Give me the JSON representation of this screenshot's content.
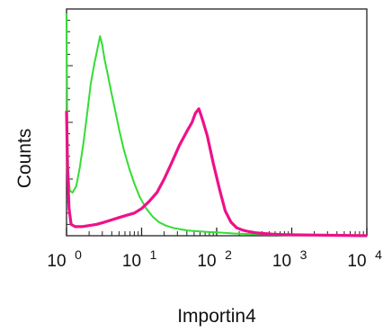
{
  "chart_data": {
    "type": "line",
    "title": "",
    "xlabel": "Importin4",
    "ylabel": "Counts",
    "x_scale": "log",
    "xlim": [
      1,
      10000
    ],
    "ylim": [
      0,
      1
    ],
    "grid": false,
    "legend": "none",
    "x_tick_labels": [
      {
        "value": 1,
        "base": "10",
        "exp": "0"
      },
      {
        "value": 10,
        "base": "10",
        "exp": "1"
      },
      {
        "value": 100,
        "base": "10",
        "exp": "2"
      },
      {
        "value": 1000,
        "base": "10",
        "exp": "3"
      },
      {
        "value": 10000,
        "base": "10",
        "exp": "4"
      }
    ],
    "series": [
      {
        "color": "#33dd33",
        "x": [
          1.0,
          1.02,
          1.05,
          1.1,
          1.2,
          1.35,
          1.5,
          1.7,
          1.9,
          2.1,
          2.35,
          2.6,
          2.8,
          3.0,
          3.2,
          3.5,
          3.9,
          4.4,
          5.0,
          5.8,
          6.8,
          8.0,
          9.5,
          11.5,
          14,
          17,
          21,
          26,
          33,
          42,
          55,
          75,
          110,
          170,
          300,
          600,
          1500,
          4000,
          10000
        ],
        "y": [
          0.98,
          0.55,
          0.3,
          0.2,
          0.19,
          0.22,
          0.3,
          0.42,
          0.55,
          0.67,
          0.76,
          0.83,
          0.88,
          0.84,
          0.78,
          0.72,
          0.64,
          0.56,
          0.47,
          0.38,
          0.3,
          0.23,
          0.17,
          0.12,
          0.085,
          0.06,
          0.045,
          0.035,
          0.028,
          0.023,
          0.02,
          0.017,
          0.014,
          0.01,
          0.007,
          0.004,
          0.002,
          0.001,
          0.0
        ]
      },
      {
        "color": "#ee1188",
        "x": [
          1.0,
          1.03,
          1.08,
          1.15,
          1.3,
          1.6,
          2.0,
          2.5,
          3.2,
          4.0,
          5.0,
          6.3,
          8.0,
          10,
          12.5,
          16,
          20,
          25,
          32,
          40,
          47,
          52,
          58,
          65,
          75,
          90,
          110,
          130,
          155,
          185,
          220,
          270,
          330,
          420,
          550,
          750,
          1100,
          1800,
          3500,
          10000
        ],
        "y": [
          0.55,
          0.3,
          0.12,
          0.05,
          0.04,
          0.04,
          0.045,
          0.05,
          0.06,
          0.07,
          0.08,
          0.09,
          0.1,
          0.12,
          0.15,
          0.19,
          0.25,
          0.32,
          0.4,
          0.46,
          0.5,
          0.54,
          0.56,
          0.51,
          0.44,
          0.32,
          0.2,
          0.11,
          0.06,
          0.035,
          0.025,
          0.018,
          0.013,
          0.01,
          0.007,
          0.005,
          0.004,
          0.003,
          0.002,
          0.0
        ]
      }
    ]
  }
}
